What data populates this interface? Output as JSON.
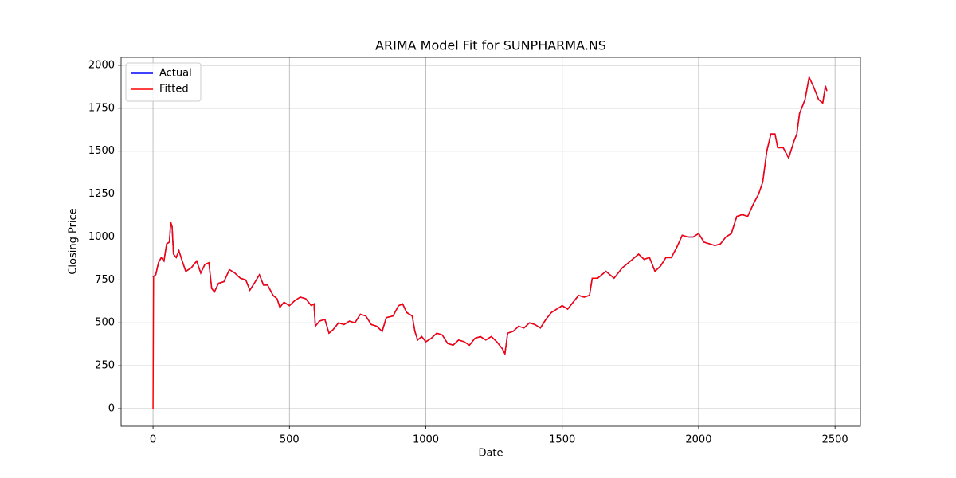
{
  "chart_data": {
    "type": "line",
    "title": "ARIMA Model Fit for SUNPHARMA.NS",
    "x_label": "Date",
    "y_label": "Closing Price",
    "x": [
      0,
      2,
      10,
      20,
      30,
      40,
      50,
      60,
      65,
      70,
      75,
      85,
      95,
      105,
      120,
      140,
      160,
      175,
      190,
      205,
      215,
      225,
      240,
      260,
      280,
      300,
      320,
      340,
      355,
      375,
      390,
      405,
      420,
      440,
      455,
      465,
      480,
      500,
      520,
      540,
      560,
      580,
      590,
      595,
      610,
      630,
      645,
      660,
      680,
      700,
      720,
      740,
      760,
      780,
      800,
      820,
      840,
      855,
      880,
      900,
      915,
      930,
      950,
      960,
      970,
      985,
      1000,
      1020,
      1040,
      1060,
      1080,
      1100,
      1120,
      1140,
      1160,
      1180,
      1200,
      1220,
      1240,
      1260,
      1280,
      1290,
      1300,
      1320,
      1340,
      1360,
      1380,
      1400,
      1420,
      1440,
      1460,
      1480,
      1500,
      1520,
      1540,
      1560,
      1580,
      1600,
      1610,
      1630,
      1660,
      1690,
      1720,
      1750,
      1780,
      1800,
      1820,
      1840,
      1860,
      1880,
      1900,
      1920,
      1940,
      1960,
      1980,
      2000,
      2020,
      2040,
      2060,
      2080,
      2100,
      2120,
      2140,
      2160,
      2180,
      2200,
      2220,
      2235,
      2250,
      2265,
      2280,
      2290,
      2310,
      2330,
      2350,
      2360,
      2370,
      2390,
      2405,
      2420,
      2440,
      2455,
      2465,
      2470
    ],
    "series": [
      {
        "name": "Actual",
        "color": "#0000ff",
        "values": [
          765,
          770,
          780,
          850,
          880,
          860,
          960,
          970,
          1085,
          1060,
          900,
          880,
          920,
          870,
          800,
          820,
          860,
          790,
          840,
          850,
          700,
          680,
          730,
          740,
          810,
          790,
          760,
          750,
          690,
          740,
          780,
          720,
          720,
          660,
          640,
          590,
          620,
          600,
          630,
          650,
          640,
          600,
          610,
          480,
          510,
          520,
          440,
          460,
          500,
          490,
          510,
          500,
          550,
          540,
          490,
          480,
          450,
          530,
          540,
          600,
          610,
          560,
          540,
          450,
          400,
          420,
          390,
          410,
          440,
          430,
          380,
          370,
          400,
          390,
          370,
          410,
          420,
          400,
          420,
          390,
          350,
          320,
          440,
          450,
          480,
          470,
          500,
          490,
          470,
          520,
          560,
          580,
          600,
          580,
          620,
          660,
          650,
          660,
          760,
          760,
          800,
          760,
          820,
          860,
          900,
          870,
          880,
          800,
          830,
          880,
          880,
          940,
          1010,
          1000,
          1000,
          1020,
          970,
          960,
          950,
          960,
          1000,
          1020,
          1120,
          1130,
          1120,
          1190,
          1250,
          1320,
          1500,
          1600,
          1600,
          1520,
          1520,
          1460,
          1560,
          1600,
          1720,
          1800,
          1930,
          1880,
          1800,
          1780,
          1880,
          1850
        ]
      },
      {
        "name": "Fitted",
        "color": "#ff0000",
        "values": [
          0,
          770,
          780,
          850,
          880,
          860,
          960,
          970,
          1085,
          1060,
          900,
          880,
          920,
          870,
          800,
          820,
          860,
          790,
          840,
          850,
          700,
          680,
          730,
          740,
          810,
          790,
          760,
          750,
          690,
          740,
          780,
          720,
          720,
          660,
          640,
          590,
          620,
          600,
          630,
          650,
          640,
          600,
          610,
          480,
          510,
          520,
          440,
          460,
          500,
          490,
          510,
          500,
          550,
          540,
          490,
          480,
          450,
          530,
          540,
          600,
          610,
          560,
          540,
          450,
          400,
          420,
          390,
          410,
          440,
          430,
          380,
          370,
          400,
          390,
          370,
          410,
          420,
          400,
          420,
          390,
          350,
          320,
          440,
          450,
          480,
          470,
          500,
          490,
          470,
          520,
          560,
          580,
          600,
          580,
          620,
          660,
          650,
          660,
          760,
          760,
          800,
          760,
          820,
          860,
          900,
          870,
          880,
          800,
          830,
          880,
          880,
          940,
          1010,
          1000,
          1000,
          1020,
          970,
          960,
          950,
          960,
          1000,
          1020,
          1120,
          1130,
          1120,
          1190,
          1250,
          1320,
          1500,
          1600,
          1600,
          1520,
          1520,
          1460,
          1560,
          1600,
          1720,
          1800,
          1930,
          1880,
          1800,
          1780,
          1880,
          1850
        ]
      }
    ],
    "xlim": [
      -117,
      2593
    ],
    "ylim": [
      -102,
      2046
    ],
    "xticks": [
      0,
      500,
      1000,
      1500,
      2000,
      2500
    ],
    "yticks": [
      0,
      250,
      500,
      750,
      1000,
      1250,
      1500,
      1750,
      2000
    ],
    "grid": true,
    "legend": "upper-left"
  }
}
